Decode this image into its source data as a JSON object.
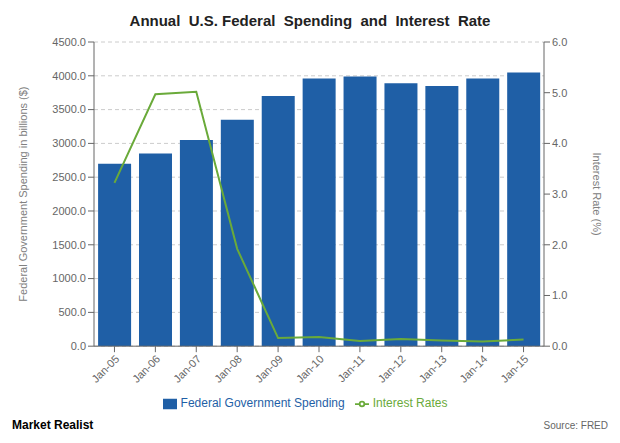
{
  "chart_data": {
    "type": "bar",
    "title": "Annual  U.S. Federal  Spending  and  Interest  Rate",
    "categories": [
      "Jan-05",
      "Jan-06",
      "Jan-07",
      "Jan-08",
      "Jan-09",
      "Jan-10",
      "Jan-11",
      "Jan-12",
      "Jan-13",
      "Jan-14",
      "Jan-15"
    ],
    "series": [
      {
        "name": "Federal Government Spending",
        "type": "bar",
        "color": "#1f5fa6",
        "values": [
          2700,
          2850,
          3050,
          3350,
          3700,
          3960,
          3990,
          3890,
          3850,
          3960,
          4050
        ]
      },
      {
        "name": "Interest Rates",
        "type": "line",
        "color": "#6aaa3a",
        "axis": "y2",
        "marker": "none",
        "values": [
          3.22,
          4.97,
          5.02,
          1.92,
          0.16,
          0.18,
          0.1,
          0.14,
          0.11,
          0.09,
          0.13
        ]
      }
    ],
    "ylabel": "Federal Government Spending in billions ($)",
    "y2label": "Interest Rate (%)",
    "ylim": [
      0,
      4500
    ],
    "yticks": [
      {
        "value": 0,
        "label": "0.0"
      },
      {
        "value": 500,
        "label": "500.0"
      },
      {
        "value": 1000,
        "label": "1000.0"
      },
      {
        "value": 1500,
        "label": "1500.0"
      },
      {
        "value": 2000,
        "label": "2000.0"
      },
      {
        "value": 2500,
        "label": "2500.0"
      },
      {
        "value": 3000,
        "label": "3000.0"
      },
      {
        "value": 3500,
        "label": "3500.0"
      },
      {
        "value": 4000,
        "label": "4000.0"
      },
      {
        "value": 4500,
        "label": "4500.0"
      }
    ],
    "y2lim": [
      0,
      6.0
    ],
    "y2ticks": [
      {
        "value": 0,
        "label": "0.0"
      },
      {
        "value": 1,
        "label": "1.0"
      },
      {
        "value": 2,
        "label": "2.0"
      },
      {
        "value": 3,
        "label": "3.0"
      },
      {
        "value": 4,
        "label": "4.0"
      },
      {
        "value": 5,
        "label": "5.0"
      },
      {
        "value": 6,
        "label": "6.0"
      }
    ],
    "grid": true,
    "legend": "bottom",
    "annotations": [
      "Market Realist",
      "Source: FRED"
    ]
  }
}
